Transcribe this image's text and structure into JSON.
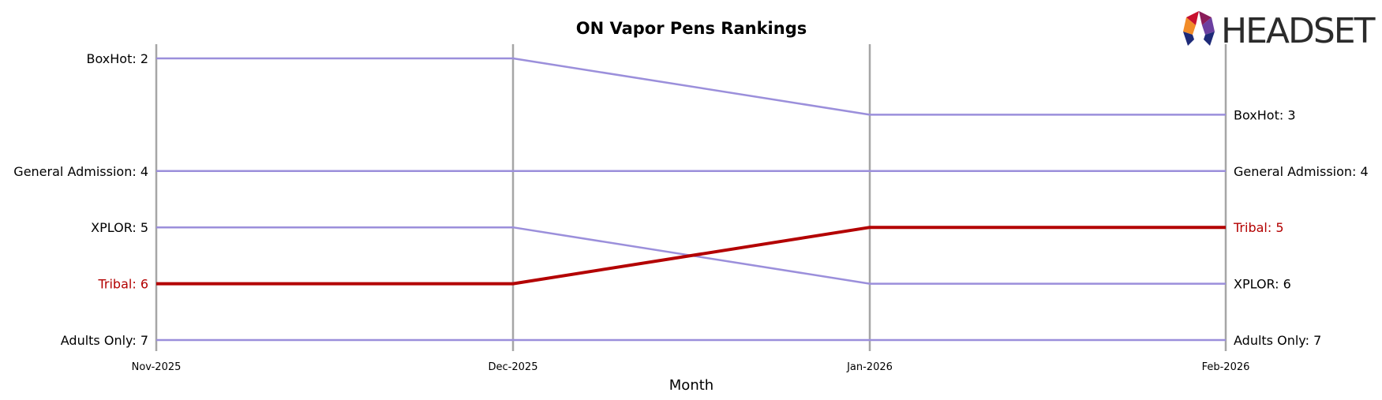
{
  "chart_data": {
    "type": "line",
    "title": "ON Vapor Pens Rankings",
    "xlabel": "Month",
    "ylabel": "",
    "categories": [
      "Nov-2025",
      "Dec-2025",
      "Jan-2026",
      "Feb-2026"
    ],
    "y_inverted": true,
    "ylim": [
      7,
      2
    ],
    "grid": false,
    "highlight_series": "Tribal",
    "series": [
      {
        "name": "BoxHot",
        "values": [
          2,
          2,
          3,
          3
        ],
        "color": "#9b8fdb",
        "highlight": false
      },
      {
        "name": "General Admission",
        "values": [
          4,
          4,
          4,
          4
        ],
        "color": "#9b8fdb",
        "highlight": false
      },
      {
        "name": "XPLOR",
        "values": [
          5,
          5,
          6,
          6
        ],
        "color": "#9b8fdb",
        "highlight": false
      },
      {
        "name": "Tribal",
        "values": [
          6,
          6,
          5,
          5
        ],
        "color": "#b30000",
        "highlight": true
      },
      {
        "name": "Adults Only",
        "values": [
          7,
          7,
          7,
          7
        ],
        "color": "#9b8fdb",
        "highlight": false
      }
    ]
  },
  "logo": {
    "text": "HEADSET",
    "colors": [
      "#c8102e",
      "#f28c28",
      "#8a1c5a",
      "#1e2a78",
      "#6b3fa0"
    ]
  },
  "colors": {
    "muted_line": "#9b8fdb",
    "highlight": "#b30000",
    "vertical_axis": "#a6a6a6"
  }
}
